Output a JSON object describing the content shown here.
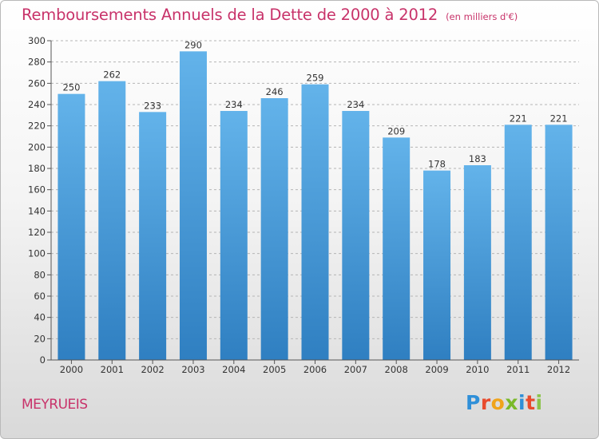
{
  "title": "Remboursements Annuels de la Dette de 2000 à 2012",
  "unit_label": "(en milliers d'€)",
  "commune": "MEYRUEIS",
  "brand": {
    "letters": [
      "P",
      "r",
      "o",
      "x",
      "i",
      "t",
      "i"
    ],
    "colors": [
      "#2f8fd8",
      "#e84b2d",
      "#f0a41b",
      "#7ab929",
      "#2f8fd8",
      "#e84b2d",
      "#8bc34a"
    ]
  },
  "colors": {
    "title": "#c8336a",
    "bar_light": "#63b3ea",
    "bar_dark": "#2f7fc1",
    "grid": "#b5b5b5"
  },
  "chart_data": {
    "type": "bar",
    "categories": [
      "2000",
      "2001",
      "2002",
      "2003",
      "2004",
      "2005",
      "2006",
      "2007",
      "2008",
      "2009",
      "2010",
      "2011",
      "2012"
    ],
    "values": [
      250,
      262,
      233,
      290,
      234,
      246,
      259,
      234,
      209,
      178,
      183,
      221,
      221
    ],
    "ylim": [
      0,
      300
    ],
    "yticks": [
      0,
      20,
      40,
      60,
      80,
      100,
      120,
      140,
      160,
      180,
      200,
      220,
      240,
      260,
      280,
      300
    ],
    "grid": true,
    "data_labels": true
  }
}
